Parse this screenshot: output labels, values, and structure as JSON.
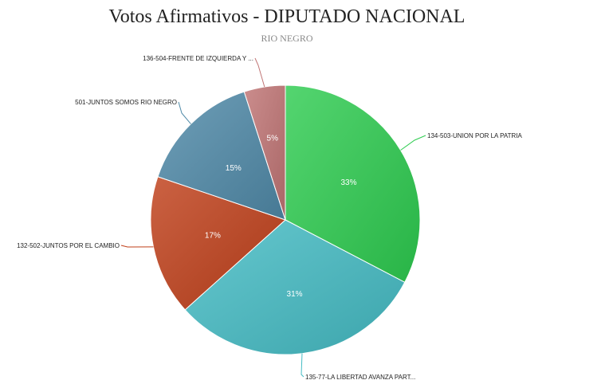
{
  "chart_data": {
    "type": "pie",
    "title": "Votos Afirmativos - DIPUTADO NACIONAL",
    "subtitle": "RIO NEGRO",
    "slices": [
      {
        "label": "134-503-UNION POR LA PATRIA",
        "value": 33,
        "pct_label": "33%",
        "color": "#2ecc50"
      },
      {
        "label": "135-77-LA LIBERTAD AVANZA PART...",
        "value": 31,
        "pct_label": "31%",
        "color": "#44bcc4"
      },
      {
        "label": "132-502-JUNTOS POR EL CAMBIO",
        "value": 17,
        "pct_label": "17%",
        "color": "#c0401a"
      },
      {
        "label": "501-JUNTOS SOMOS RIO NEGRO",
        "value": 15,
        "pct_label": "15%",
        "color": "#4f8aa8"
      },
      {
        "label": "136-504-FRENTE DE IZQUIERDA Y ...",
        "value": 5,
        "pct_label": "5%",
        "color": "#c07474"
      }
    ]
  }
}
